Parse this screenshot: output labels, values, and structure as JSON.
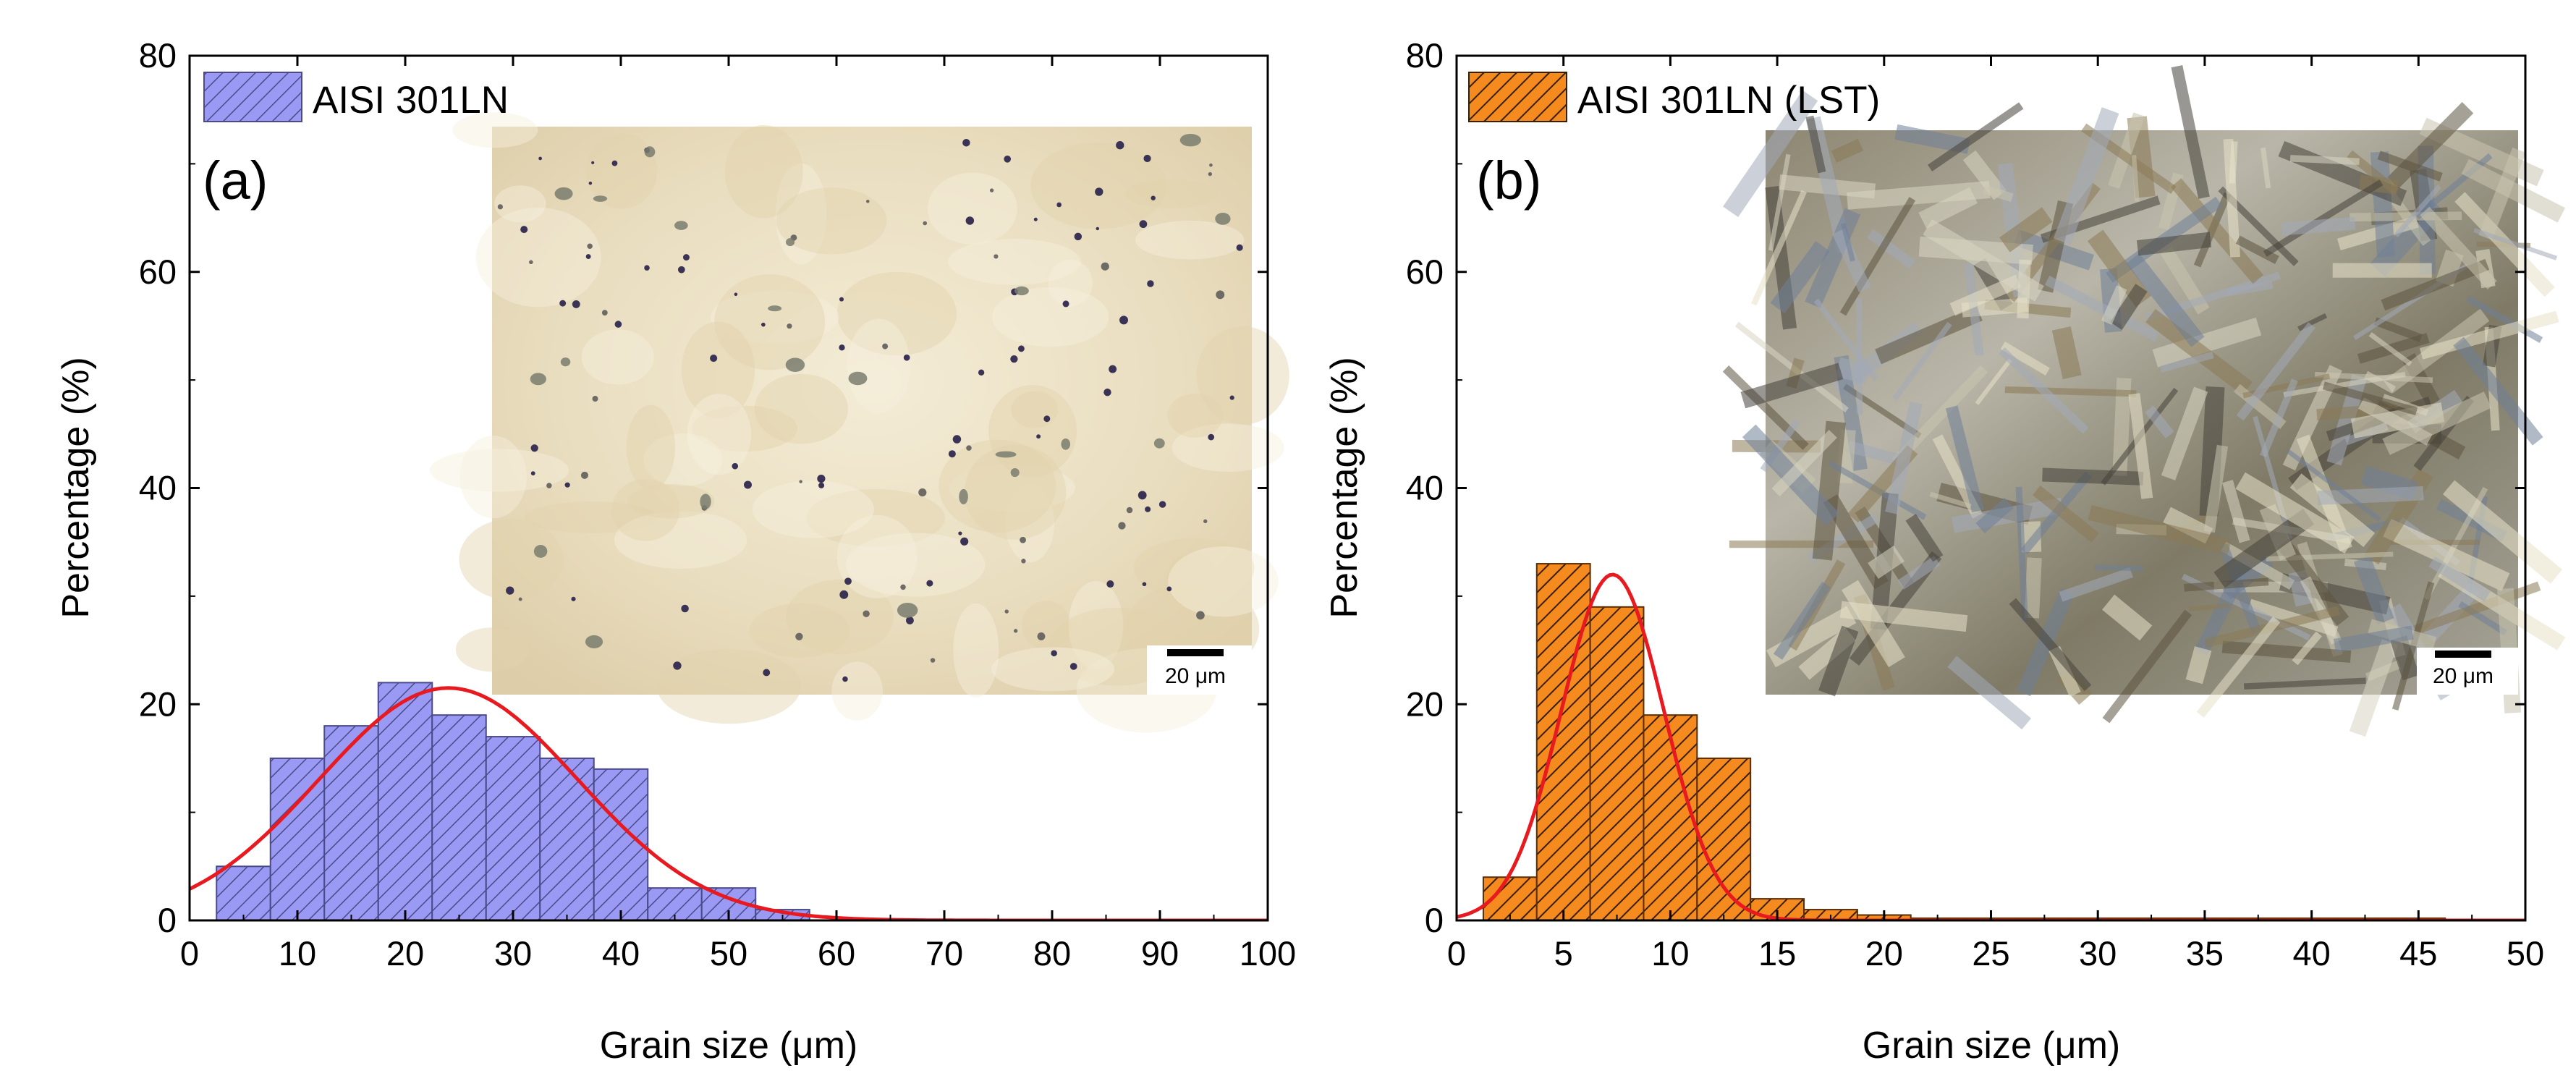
{
  "chart_data": [
    {
      "panel_label": "(a)",
      "type": "bar",
      "bin_type": "histogram",
      "legend": "AISI 301LN",
      "xlabel": "Grain size (μm)",
      "ylabel": "Percentage (%)",
      "xlim": [
        0,
        100
      ],
      "ylim": [
        0,
        80
      ],
      "xticks": [
        0,
        10,
        20,
        30,
        40,
        50,
        60,
        70,
        80,
        90,
        100
      ],
      "yticks": [
        0,
        20,
        40,
        60,
        80
      ],
      "bin_width": 5,
      "bin_centers": [
        5,
        10,
        15,
        20,
        25,
        30,
        35,
        40,
        45,
        50,
        55,
        60
      ],
      "values": [
        5,
        15,
        18,
        22,
        19,
        17,
        15,
        14,
        3,
        3,
        1,
        0
      ],
      "fit": {
        "type": "gaussian",
        "amplitude": 21.5,
        "mean": 24,
        "sd": 12,
        "color": "#e8191f"
      },
      "bar_color": "#9a9af5",
      "bar_edge": "#4a4a8a",
      "micrograph": {
        "scale_bar": "20 μm",
        "tone": "light-beige"
      }
    },
    {
      "panel_label": "(b)",
      "type": "bar",
      "bin_type": "histogram",
      "legend": "AISI 301LN (LST)",
      "xlabel": "Grain size (μm)",
      "ylabel": "Percentage (%)",
      "xlim": [
        0,
        50
      ],
      "ylim": [
        0,
        80
      ],
      "xticks": [
        0,
        5,
        10,
        15,
        20,
        25,
        30,
        35,
        40,
        45,
        50
      ],
      "yticks": [
        0,
        20,
        40,
        60,
        80
      ],
      "bin_width": 2.5,
      "bin_centers": [
        2.5,
        5,
        7.5,
        10,
        12.5,
        15,
        17.5,
        20,
        22.5,
        25,
        27.5,
        30,
        32.5,
        35,
        37.5,
        40,
        42.5,
        45
      ],
      "values": [
        4,
        33,
        29,
        19,
        15,
        2,
        1,
        0.5,
        0.2,
        0.2,
        0.2,
        0.2,
        0.2,
        0.2,
        0.2,
        0.2,
        0.2,
        0.2
      ],
      "fit": {
        "type": "gaussian",
        "amplitude": 32,
        "mean": 7.3,
        "sd": 2.4,
        "color": "#e8191f"
      },
      "bar_color": "#f58a1f",
      "bar_edge": "#5a2d00",
      "micrograph": {
        "scale_bar": "20 μm",
        "tone": "grey-blue-brown"
      }
    }
  ]
}
